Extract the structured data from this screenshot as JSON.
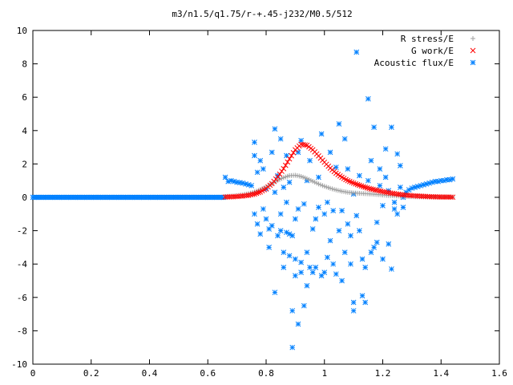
{
  "chart_data": {
    "type": "scatter",
    "title": "m3/n1.5/q1.75/r-+.45-j232/M0.5/512",
    "xlabel": "",
    "ylabel": "",
    "xlim": [
      0,
      1.6
    ],
    "ylim": [
      -10,
      10
    ],
    "x_ticks": [
      0,
      0.2,
      0.4,
      0.6,
      0.8,
      1,
      1.2,
      1.4,
      1.6
    ],
    "x_tick_labels": [
      "0",
      "0.2",
      "0.4",
      "0.6",
      "0.8",
      "1",
      "1.2",
      "1.4",
      "1.6"
    ],
    "y_ticks": [
      -10,
      -8,
      -6,
      -4,
      -2,
      0,
      2,
      4,
      6,
      8,
      10
    ],
    "y_tick_labels": [
      "-10",
      "-8",
      "-6",
      "-4",
      "-2",
      "0",
      "2",
      "4",
      "6",
      "8",
      "10"
    ],
    "grid": false,
    "legend_position": "top-right",
    "series": [
      {
        "name": "R stress/E",
        "marker": "plus",
        "color": "#a0a0a0",
        "points": [
          [
            0.66,
            0.05
          ],
          [
            0.68,
            0.07
          ],
          [
            0.7,
            0.1
          ],
          [
            0.72,
            0.15
          ],
          [
            0.74,
            0.22
          ],
          [
            0.76,
            0.32
          ],
          [
            0.78,
            0.46
          ],
          [
            0.8,
            0.62
          ],
          [
            0.82,
            0.82
          ],
          [
            0.84,
            1.02
          ],
          [
            0.86,
            1.18
          ],
          [
            0.88,
            1.3
          ],
          [
            0.9,
            1.32
          ],
          [
            0.92,
            1.25
          ],
          [
            0.94,
            1.12
          ],
          [
            0.96,
            0.96
          ],
          [
            0.98,
            0.8
          ],
          [
            1.0,
            0.66
          ],
          [
            1.02,
            0.54
          ],
          [
            1.04,
            0.44
          ],
          [
            1.06,
            0.36
          ],
          [
            1.08,
            0.3
          ],
          [
            1.1,
            0.26
          ],
          [
            1.12,
            0.24
          ],
          [
            1.14,
            0.22
          ],
          [
            1.16,
            0.2
          ],
          [
            1.18,
            0.17
          ],
          [
            1.2,
            0.14
          ],
          [
            1.22,
            0.11
          ],
          [
            1.24,
            0.09
          ],
          [
            1.26,
            0.07
          ],
          [
            1.28,
            0.05
          ],
          [
            1.3,
            0.04
          ],
          [
            1.32,
            0.03
          ],
          [
            1.34,
            0.02
          ],
          [
            1.36,
            0.02
          ],
          [
            1.38,
            0.01
          ],
          [
            1.4,
            0.01
          ],
          [
            1.42,
            0.01
          ],
          [
            1.44,
            0.0
          ]
        ]
      },
      {
        "name": "G work/E",
        "marker": "cross",
        "color": "#ff0000",
        "points": [
          [
            0.66,
            0.02
          ],
          [
            0.68,
            0.03
          ],
          [
            0.7,
            0.05
          ],
          [
            0.72,
            0.08
          ],
          [
            0.74,
            0.12
          ],
          [
            0.76,
            0.2
          ],
          [
            0.78,
            0.32
          ],
          [
            0.8,
            0.52
          ],
          [
            0.82,
            0.82
          ],
          [
            0.84,
            1.22
          ],
          [
            0.86,
            1.72
          ],
          [
            0.88,
            2.3
          ],
          [
            0.9,
            2.85
          ],
          [
            0.92,
            3.18
          ],
          [
            0.94,
            3.12
          ],
          [
            0.96,
            2.85
          ],
          [
            0.98,
            2.48
          ],
          [
            1.0,
            2.1
          ],
          [
            1.02,
            1.75
          ],
          [
            1.04,
            1.45
          ],
          [
            1.06,
            1.2
          ],
          [
            1.08,
            1.0
          ],
          [
            1.1,
            0.85
          ],
          [
            1.12,
            0.72
          ],
          [
            1.14,
            0.6
          ],
          [
            1.16,
            0.5
          ],
          [
            1.18,
            0.42
          ],
          [
            1.2,
            0.34
          ],
          [
            1.22,
            0.28
          ],
          [
            1.24,
            0.22
          ],
          [
            1.26,
            0.17
          ],
          [
            1.28,
            0.13
          ],
          [
            1.3,
            0.1
          ],
          [
            1.32,
            0.08
          ],
          [
            1.34,
            0.06
          ],
          [
            1.36,
            0.04
          ],
          [
            1.38,
            0.03
          ],
          [
            1.4,
            0.02
          ],
          [
            1.42,
            0.02
          ],
          [
            1.44,
            0.01
          ]
        ]
      },
      {
        "name": "Acoustic flux/E",
        "marker": "star",
        "color": "#0080ff",
        "points": [
          [
            0.66,
            1.2
          ],
          [
            0.67,
            0.95
          ],
          [
            0.68,
            1.0
          ],
          [
            0.69,
            0.95
          ],
          [
            0.7,
            0.9
          ],
          [
            0.71,
            0.88
          ],
          [
            0.72,
            0.85
          ],
          [
            0.73,
            0.8
          ],
          [
            0.74,
            0.75
          ],
          [
            0.75,
            0.7
          ],
          [
            0.76,
            3.3
          ],
          [
            0.76,
            2.5
          ],
          [
            0.76,
            -1.0
          ],
          [
            0.77,
            -1.6
          ],
          [
            0.77,
            1.5
          ],
          [
            0.78,
            2.2
          ],
          [
            0.78,
            -2.2
          ],
          [
            0.79,
            1.7
          ],
          [
            0.79,
            -0.7
          ],
          [
            0.8,
            -1.3
          ],
          [
            0.8,
            0.5
          ],
          [
            0.81,
            -1.9
          ],
          [
            0.81,
            -3.0
          ],
          [
            0.82,
            -1.7
          ],
          [
            0.82,
            2.7
          ],
          [
            0.83,
            4.1
          ],
          [
            0.83,
            -5.7
          ],
          [
            0.83,
            0.3
          ],
          [
            0.84,
            -2.3
          ],
          [
            0.84,
            1.3
          ],
          [
            0.85,
            -1.0
          ],
          [
            0.85,
            3.5
          ],
          [
            0.85,
            -2.0
          ],
          [
            0.86,
            -3.3
          ],
          [
            0.86,
            0.6
          ],
          [
            0.86,
            -4.2
          ],
          [
            0.87,
            -2.1
          ],
          [
            0.87,
            -0.3
          ],
          [
            0.87,
            2.5
          ],
          [
            0.88,
            -2.2
          ],
          [
            0.88,
            -3.5
          ],
          [
            0.88,
            0.9
          ],
          [
            0.89,
            -6.8
          ],
          [
            0.89,
            -9.0
          ],
          [
            0.89,
            -2.3
          ],
          [
            0.9,
            -1.3
          ],
          [
            0.9,
            -3.7
          ],
          [
            0.9,
            -4.7
          ],
          [
            0.91,
            -0.7
          ],
          [
            0.91,
            -7.6
          ],
          [
            0.91,
            2.7
          ],
          [
            0.92,
            -3.9
          ],
          [
            0.92,
            3.4
          ],
          [
            0.92,
            -4.5
          ],
          [
            0.93,
            -6.5
          ],
          [
            0.93,
            -0.4
          ],
          [
            0.94,
            -5.3
          ],
          [
            0.94,
            -3.3
          ],
          [
            0.94,
            1.0
          ],
          [
            0.95,
            2.2
          ],
          [
            0.95,
            -4.2
          ],
          [
            0.96,
            -4.5
          ],
          [
            0.96,
            -1.9
          ],
          [
            0.97,
            -1.3
          ],
          [
            0.97,
            -4.2
          ],
          [
            0.98,
            -0.6
          ],
          [
            0.98,
            1.2
          ],
          [
            0.99,
            -4.7
          ],
          [
            0.99,
            3.8
          ],
          [
            1.0,
            -1.0
          ],
          [
            1.0,
            -4.5
          ],
          [
            1.01,
            -3.6
          ],
          [
            1.01,
            -0.3
          ],
          [
            1.02,
            2.7
          ],
          [
            1.02,
            -2.6
          ],
          [
            1.03,
            -4.0
          ],
          [
            1.03,
            -0.8
          ],
          [
            1.04,
            -4.6
          ],
          [
            1.04,
            1.8
          ],
          [
            1.05,
            4.4
          ],
          [
            1.05,
            -2.0
          ],
          [
            1.06,
            -5.0
          ],
          [
            1.06,
            -0.8
          ],
          [
            1.07,
            -3.3
          ],
          [
            1.07,
            3.5
          ],
          [
            1.08,
            -1.6
          ],
          [
            1.08,
            1.7
          ],
          [
            1.09,
            -2.3
          ],
          [
            1.09,
            -4.0
          ],
          [
            1.1,
            0.2
          ],
          [
            1.1,
            -6.3
          ],
          [
            1.1,
            -6.8
          ],
          [
            1.11,
            8.7
          ],
          [
            1.11,
            -1.1
          ],
          [
            1.12,
            -2.0
          ],
          [
            1.12,
            1.3
          ],
          [
            1.13,
            -5.9
          ],
          [
            1.13,
            -3.7
          ],
          [
            1.14,
            -4.2
          ],
          [
            1.14,
            -6.3
          ],
          [
            1.15,
            1.0
          ],
          [
            1.15,
            5.9
          ],
          [
            1.16,
            -3.3
          ],
          [
            1.16,
            2.2
          ],
          [
            1.17,
            4.2
          ],
          [
            1.17,
            -3.0
          ],
          [
            1.18,
            -1.5
          ],
          [
            1.18,
            -2.7
          ],
          [
            1.19,
            0.7
          ],
          [
            1.19,
            1.7
          ],
          [
            1.2,
            -3.7
          ],
          [
            1.2,
            -0.5
          ],
          [
            1.21,
            1.2
          ],
          [
            1.21,
            2.9
          ],
          [
            1.22,
            -2.8
          ],
          [
            1.22,
            0.4
          ],
          [
            1.23,
            4.2
          ],
          [
            1.23,
            -4.3
          ],
          [
            1.24,
            -0.3
          ],
          [
            1.24,
            -0.7
          ],
          [
            1.25,
            2.6
          ],
          [
            1.25,
            -1.0
          ],
          [
            1.26,
            1.9
          ],
          [
            1.26,
            0.6
          ],
          [
            1.27,
            -0.6
          ],
          [
            1.27,
            0.0
          ],
          [
            1.28,
            0.3
          ],
          [
            1.29,
            0.45
          ],
          [
            1.3,
            0.55
          ],
          [
            1.31,
            0.6
          ],
          [
            1.32,
            0.65
          ],
          [
            1.33,
            0.7
          ],
          [
            1.34,
            0.75
          ],
          [
            1.35,
            0.8
          ],
          [
            1.36,
            0.85
          ],
          [
            1.37,
            0.9
          ],
          [
            1.38,
            0.95
          ],
          [
            1.39,
            0.95
          ],
          [
            1.4,
            1.0
          ],
          [
            1.41,
            1.0
          ],
          [
            1.42,
            1.05
          ],
          [
            1.43,
            1.05
          ],
          [
            1.44,
            1.1
          ]
        ]
      }
    ]
  }
}
